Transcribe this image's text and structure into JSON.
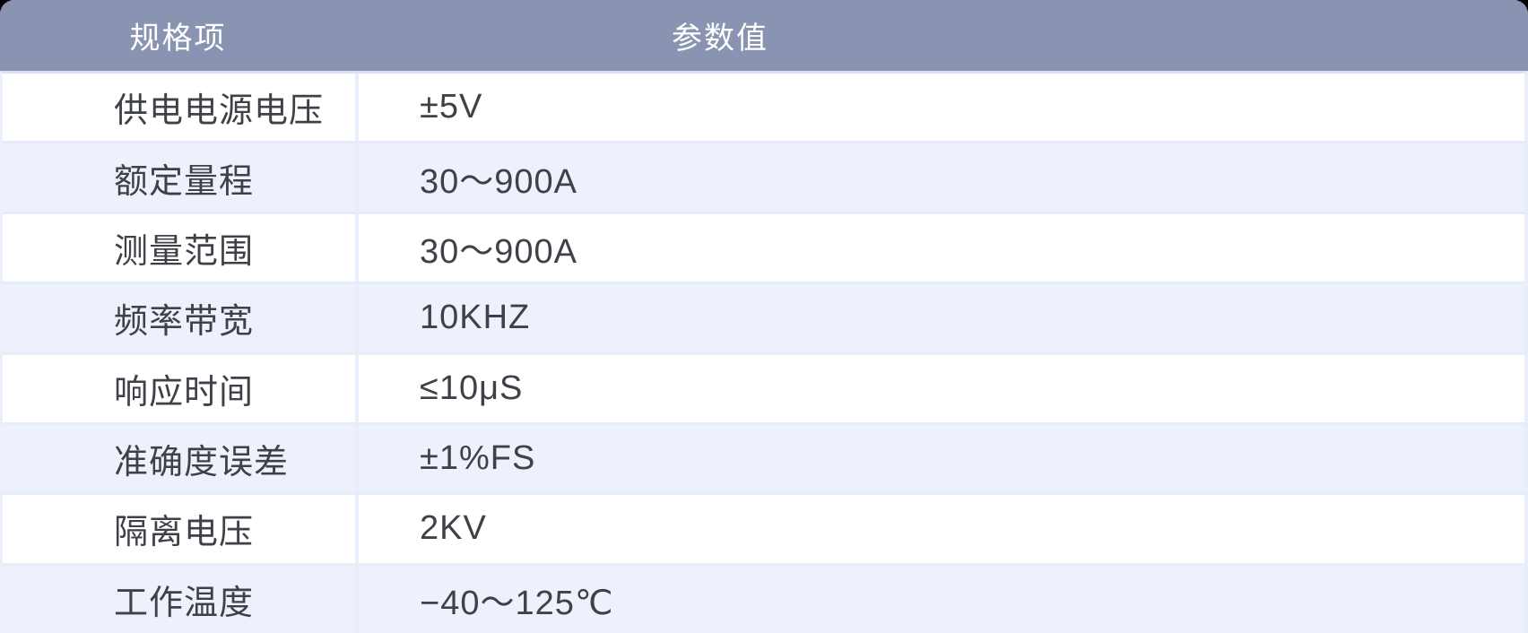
{
  "table": {
    "columns": [
      {
        "label": "规格项"
      },
      {
        "label": "参数值"
      }
    ],
    "rows": [
      {
        "spec": "供电电源电压",
        "value": "±5V"
      },
      {
        "spec": "额定量程",
        "value": "30～900A"
      },
      {
        "spec": "测量范围",
        "value": "30～900A"
      },
      {
        "spec": "频率带宽",
        "value": "10KHZ"
      },
      {
        "spec": "响应时间",
        "value": "≤10μS"
      },
      {
        "spec": "准确度误差",
        "value": "±1%FS"
      },
      {
        "spec": "隔离电压",
        "value": "2KV"
      },
      {
        "spec": "工作温度",
        "value": "−40～125℃"
      }
    ],
    "colors": {
      "header_bg": "#8A94B2",
      "header_text": "#FFFFFF",
      "row_bg": "#FFFFFF",
      "row_alt_bg": "#EDF1FC",
      "separator": "#E6ECFA",
      "text": "#3E4147"
    }
  }
}
